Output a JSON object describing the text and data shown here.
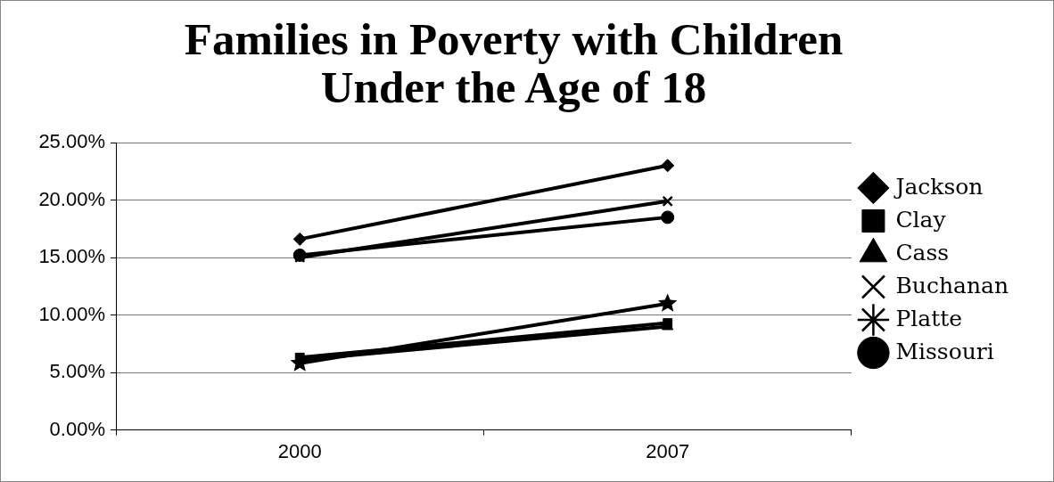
{
  "chart_data": {
    "type": "line",
    "title": "Families in Poverty with Children Under the Age of 18",
    "categories": [
      "2000",
      "2007"
    ],
    "series": [
      {
        "name": "Jackson",
        "color": "#000000",
        "marker": "diamond",
        "values": [
          16.6,
          23.0
        ]
      },
      {
        "name": "Clay",
        "color": "#000000",
        "marker": "square",
        "values": [
          6.3,
          9.3
        ]
      },
      {
        "name": "Cass",
        "color": "#000000",
        "marker": "triangle",
        "values": [
          6.1,
          9.0
        ]
      },
      {
        "name": "Buchanan",
        "color": "#000000",
        "marker": "cross",
        "values": [
          15.0,
          19.9
        ]
      },
      {
        "name": "Platte",
        "color": "#000000",
        "marker": "star",
        "values": [
          5.8,
          11.0
        ]
      },
      {
        "name": "Missouri",
        "color": "#000000",
        "marker": "circle",
        "values": [
          15.2,
          18.5
        ]
      }
    ],
    "ylim": [
      0,
      25
    ],
    "yticks": [
      {
        "value": 0,
        "label": "0.00%"
      },
      {
        "value": 5,
        "label": "5.00%"
      },
      {
        "value": 10,
        "label": "10.00%"
      },
      {
        "value": 15,
        "label": "15.00%"
      },
      {
        "value": 20,
        "label": "20.00%"
      },
      {
        "value": 25,
        "label": "25.00%"
      }
    ],
    "grid": "y",
    "legend": "right"
  }
}
